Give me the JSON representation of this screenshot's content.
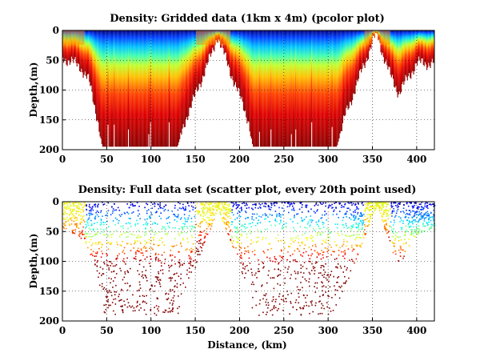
{
  "chart_data": [
    {
      "type": "heatmap",
      "title": "Density: Gridded data (1km x 4m) (pcolor plot)",
      "xlabel": "",
      "ylabel": "Depth,(m)",
      "xlim": [
        0,
        420
      ],
      "ylim": [
        200,
        0
      ],
      "x_ticks": [
        0,
        50,
        100,
        150,
        200,
        250,
        300,
        350,
        400
      ],
      "y_ticks": [
        0,
        50,
        100,
        150,
        200
      ],
      "grid": true,
      "colormap": "jet",
      "profile_max_depth_m": {
        "x_km": [
          0,
          20,
          30,
          40,
          45,
          50,
          60,
          70,
          80,
          90,
          100,
          110,
          120,
          130,
          140,
          150,
          160,
          170,
          175,
          180,
          190,
          200,
          210,
          215,
          220,
          230,
          240,
          250,
          260,
          270,
          280,
          290,
          300,
          310,
          320,
          330,
          340,
          350,
          355,
          360,
          370,
          380,
          390,
          400,
          410,
          420
        ],
        "depth_m": [
          45,
          60,
          85,
          150,
          195,
          195,
          195,
          195,
          195,
          195,
          195,
          195,
          195,
          195,
          145,
          110,
          70,
          35,
          8,
          30,
          70,
          110,
          150,
          195,
          195,
          195,
          195,
          195,
          195,
          195,
          195,
          195,
          195,
          195,
          140,
          100,
          60,
          20,
          5,
          30,
          75,
          105,
          80,
          55,
          55,
          55
        ]
      },
      "surface_minimum_regions_km": [
        [
          25,
          150
        ],
        [
          190,
          340
        ],
        [
          370,
          420
        ]
      ]
    },
    {
      "type": "scatter",
      "title": "Density: Full data set (scatter plot, every 20th point used)",
      "xlabel": "Distance, (km)",
      "ylabel": "Depth,(m)",
      "xlim": [
        0,
        420
      ],
      "ylim": [
        200,
        0
      ],
      "x_ticks": [
        0,
        50,
        100,
        150,
        200,
        250,
        300,
        350,
        400
      ],
      "y_ticks": [
        0,
        50,
        100,
        150,
        200
      ],
      "grid": true,
      "colormap": "jet",
      "sampling": "every 20th point",
      "profile_max_depth_m": {
        "x_km": [
          0,
          20,
          30,
          40,
          45,
          50,
          60,
          70,
          80,
          90,
          100,
          110,
          120,
          130,
          140,
          150,
          160,
          170,
          175,
          180,
          190,
          200,
          210,
          215,
          220,
          230,
          240,
          250,
          260,
          270,
          280,
          290,
          300,
          310,
          320,
          330,
          340,
          350,
          355,
          360,
          370,
          380,
          390,
          400,
          410,
          420
        ],
        "depth_m": [
          45,
          60,
          85,
          130,
          190,
          190,
          190,
          190,
          190,
          190,
          190,
          190,
          190,
          190,
          145,
          110,
          70,
          35,
          8,
          30,
          70,
          110,
          150,
          190,
          190,
          190,
          190,
          190,
          190,
          190,
          190,
          190,
          190,
          180,
          140,
          100,
          60,
          20,
          5,
          30,
          75,
          110,
          80,
          55,
          50,
          50
        ]
      }
    }
  ]
}
